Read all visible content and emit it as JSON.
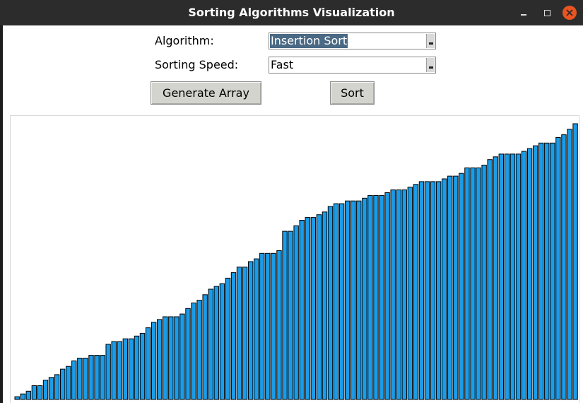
{
  "window": {
    "title": "Sorting Algorithms Visualization"
  },
  "controls": {
    "algorithm_label": "Algorithm:",
    "algorithm_value": "Insertion Sort",
    "speed_label": "Sorting Speed:",
    "speed_value": "Fast",
    "generate_label": "Generate Array",
    "sort_label": "Sort"
  },
  "colors": {
    "bar_fill": "#1a9ce8",
    "bar_stroke": "#000000",
    "titlebar": "#2c2c2c",
    "close_button": "#e95420"
  },
  "chart_data": {
    "type": "bar",
    "values": [
      1,
      2,
      3,
      5,
      5,
      7,
      8,
      9,
      11,
      12,
      14,
      15,
      15,
      16,
      16,
      16,
      20,
      21,
      21,
      22,
      22,
      23,
      24,
      26,
      28,
      29,
      30,
      30,
      30,
      31,
      33,
      35,
      36,
      38,
      40,
      41,
      42,
      44,
      46,
      48,
      48,
      50,
      51,
      53,
      53,
      53,
      54,
      61,
      61,
      63,
      65,
      66,
      66,
      67,
      68,
      70,
      71,
      71,
      72,
      72,
      72,
      73,
      74,
      74,
      74,
      75,
      76,
      76,
      76,
      77,
      78,
      79,
      79,
      79,
      79,
      80,
      81,
      81,
      82,
      84,
      84,
      84,
      85,
      87,
      88,
      89,
      89,
      89,
      89,
      90,
      91,
      92,
      93,
      93,
      93,
      95,
      96,
      98,
      100
    ],
    "ylim": [
      0,
      100
    ]
  }
}
